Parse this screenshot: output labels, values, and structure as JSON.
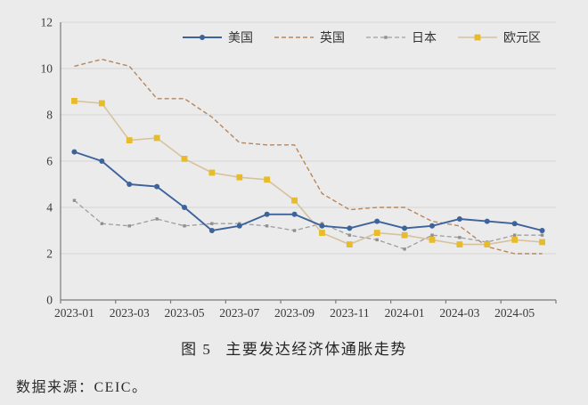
{
  "figure": {
    "number_label": "图 5",
    "title": "主要发达经济体通胀走势",
    "source": "数据来源：CEIC。"
  },
  "chart_data": {
    "type": "line",
    "title": "图 5 主要发达经济体通胀走势",
    "x": [
      "2023-01",
      "2023-02",
      "2023-03",
      "2023-04",
      "2023-05",
      "2023-06",
      "2023-07",
      "2023-08",
      "2023-09",
      "2023-10",
      "2023-11",
      "2023-12",
      "2024-01",
      "2024-02",
      "2024-03",
      "2024-04",
      "2024-05",
      "2024-06"
    ],
    "x_tick_labels": [
      "2023-01",
      "2023-03",
      "2023-05",
      "2023-07",
      "2023-09",
      "2023-11",
      "2024-01",
      "2024-03",
      "2024-05"
    ],
    "y_ticks": [
      0,
      2,
      4,
      6,
      8,
      10,
      12
    ],
    "ylim": [
      0,
      12
    ],
    "grid": true,
    "legend_position": "top-center",
    "series": [
      {
        "key": "us",
        "name": "美国",
        "style": "solid",
        "marker": "circle",
        "color": "#3d639b",
        "marker_color": "#3d639b",
        "values": [
          6.4,
          6.0,
          5.0,
          4.9,
          4.0,
          3.0,
          3.2,
          3.7,
          3.7,
          3.2,
          3.1,
          3.4,
          3.1,
          3.2,
          3.5,
          3.4,
          3.3,
          3.0
        ]
      },
      {
        "key": "uk",
        "name": "英国",
        "style": "dashed",
        "marker": "none",
        "color": "#b8865c",
        "marker_color": "#b8865c",
        "values": [
          10.1,
          10.4,
          10.1,
          8.7,
          8.7,
          7.9,
          6.8,
          6.7,
          6.7,
          4.6,
          3.9,
          4.0,
          4.0,
          3.4,
          3.2,
          2.3,
          2.0,
          2.0
        ]
      },
      {
        "key": "jp",
        "name": "日本",
        "style": "dashed",
        "marker": "small-square",
        "color": "#9e9e9e",
        "marker_color": "#8f8f8f",
        "values": [
          4.3,
          3.3,
          3.2,
          3.5,
          3.2,
          3.3,
          3.3,
          3.2,
          3.0,
          3.3,
          2.8,
          2.6,
          2.2,
          2.8,
          2.7,
          2.5,
          2.8,
          2.8
        ]
      },
      {
        "key": "ez",
        "name": "欧元区",
        "style": "solid",
        "marker": "square",
        "color": "#d8c29d",
        "marker_color": "#e7bb2a",
        "values": [
          8.6,
          8.5,
          6.9,
          7.0,
          6.1,
          5.5,
          5.3,
          5.2,
          4.3,
          2.9,
          2.4,
          2.9,
          2.8,
          2.6,
          2.4,
          2.4,
          2.6,
          2.5
        ]
      }
    ],
    "colors": {
      "background": "#ebebeb",
      "gridline": "#d4d4d4",
      "axis": "#7a7a7a",
      "tick_text": "#3a3a3a"
    }
  }
}
